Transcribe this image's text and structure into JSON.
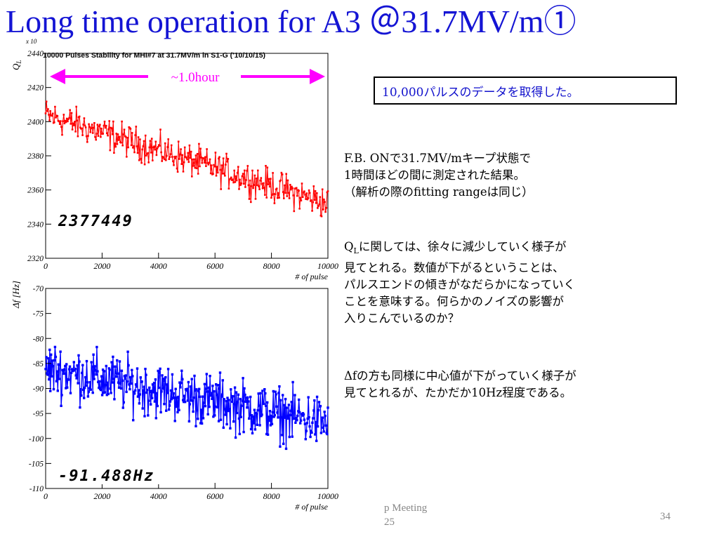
{
  "slide": {
    "title": "Long time operation for A3 ＠31.7MV/m①",
    "info_box": "10,000パルスのデータを取得した。",
    "text_block1": [
      "F.B. ONで31.7MV/mキープ状態で",
      "1時間ほどの間に測定された結果。",
      "（解析の際のfitting rangeは同じ）"
    ],
    "ql_prefix": "Q",
    "ql_sub": "L",
    "ql_rest": "に関しては、徐々に減少していく様子が",
    "text_block2": [
      "見てとれる。数値が下がるということは、",
      "パルスエンドの傾きがなだらかになっていく",
      "ことを意味する。何らかのノイズの影響が",
      "入りこんでいるのか？"
    ],
    "text_block3": [
      "Δfの方も同様に中心値が下がっていく様子が",
      "見てとれるが、たかだか10Hz程度である。"
    ],
    "footer_meeting": [
      "p Meeting",
      "25"
    ],
    "page_number": "34"
  },
  "chart_data": [
    {
      "type": "scatter",
      "title": "10000 Pulses Stability for MHI#7 at 31.7MV/m in S1-G ('10/10/15)",
      "xlabel": "# of pulse",
      "ylabel": "Q_L",
      "exponent_label": "x 10",
      "xlim": [
        0,
        10000
      ],
      "ylim": [
        2320,
        2440
      ],
      "xticks": [
        0,
        2000,
        4000,
        6000,
        8000,
        10000
      ],
      "yticks": [
        2320,
        2340,
        2360,
        2380,
        2400,
        2420,
        2440
      ],
      "color": "#ff0000",
      "annotation": "~1.0hour",
      "annotation_color": "#ff00ff",
      "overlay_value": "2377449",
      "trend": {
        "x": [
          0,
          10000
        ],
        "y": [
          2404,
          2352
        ]
      },
      "spread": {
        "low": -14,
        "high": 14
      }
    },
    {
      "type": "scatter",
      "title": "",
      "xlabel": "# of pulse",
      "ylabel": "Δf [Hz]",
      "xlim": [
        0,
        10000
      ],
      "ylim": [
        -110,
        -70
      ],
      "xticks": [
        0,
        2000,
        4000,
        6000,
        8000,
        10000
      ],
      "yticks": [
        -110,
        -105,
        -100,
        -95,
        -90,
        -85,
        -80,
        -75,
        -70
      ],
      "color": "#0000ff",
      "overlay_value": "-91.488Hz",
      "trend": {
        "x": [
          0,
          10000
        ],
        "y": [
          -86,
          -97
        ]
      },
      "spread": {
        "low": -8,
        "high": 8
      }
    }
  ]
}
